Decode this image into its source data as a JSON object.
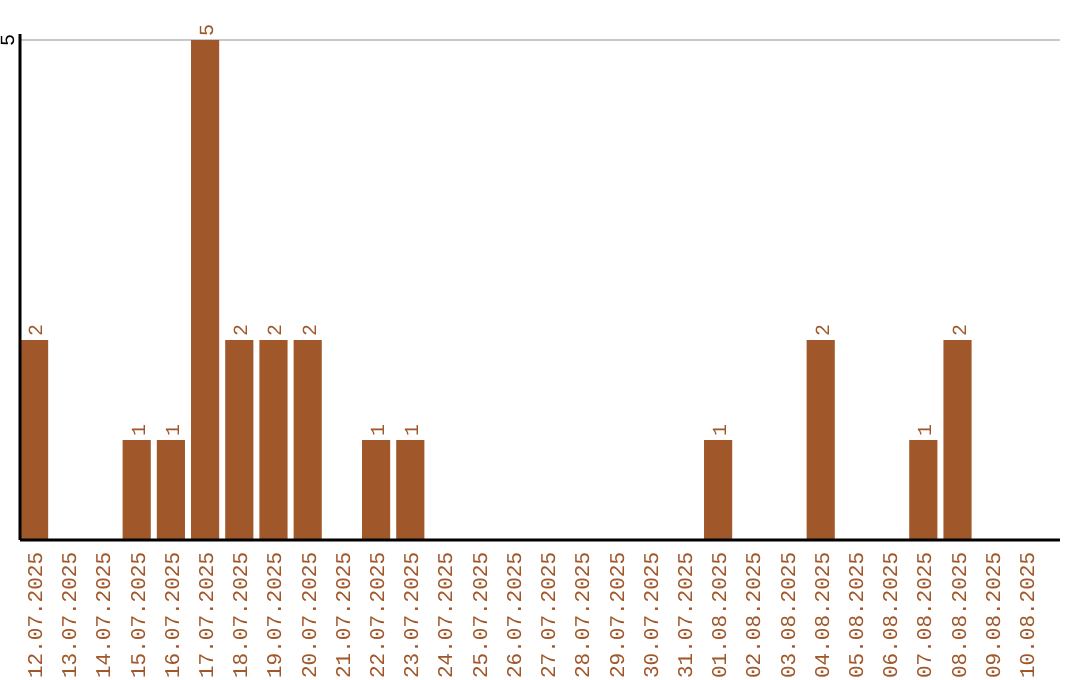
{
  "chart_data": {
    "type": "bar",
    "categories": [
      "12.07.2025",
      "13.07.2025",
      "14.07.2025",
      "15.07.2025",
      "16.07.2025",
      "17.07.2025",
      "18.07.2025",
      "19.07.2025",
      "20.07.2025",
      "21.07.2025",
      "22.07.2025",
      "23.07.2025",
      "24.07.2025",
      "25.07.2025",
      "26.07.2025",
      "27.07.2025",
      "28.07.2025",
      "29.07.2025",
      "30.07.2025",
      "31.07.2025",
      "01.08.2025",
      "02.08.2025",
      "03.08.2025",
      "04.08.2025",
      "05.08.2025",
      "06.08.2025",
      "07.08.2025",
      "08.08.2025",
      "09.08.2025",
      "10.08.2025"
    ],
    "values": [
      2,
      0,
      0,
      1,
      1,
      5,
      2,
      2,
      2,
      0,
      1,
      1,
      0,
      0,
      0,
      0,
      0,
      0,
      0,
      0,
      1,
      0,
      0,
      2,
      0,
      0,
      1,
      2,
      0,
      0
    ],
    "value_labels": [
      "2",
      null,
      null,
      "1",
      "1",
      "5",
      "2",
      "2",
      "2",
      null,
      "1",
      "1",
      null,
      null,
      null,
      null,
      null,
      null,
      null,
      null,
      "1",
      null,
      null,
      "2",
      null,
      null,
      "1",
      "2",
      null,
      null
    ],
    "color": "#a0572a",
    "ylim": [
      0,
      5
    ],
    "yticks": [
      5
    ],
    "ref_lines": [
      {
        "axis": "y",
        "value": 5,
        "color": "#c8c8c8"
      }
    ]
  }
}
